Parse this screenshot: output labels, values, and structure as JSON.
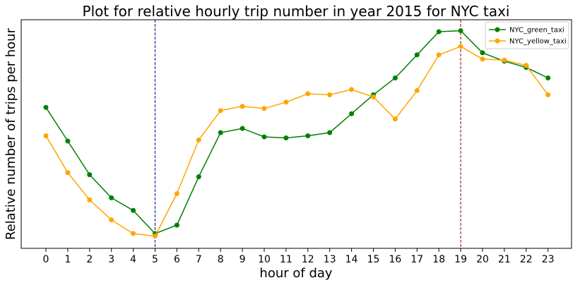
{
  "chart_data": {
    "type": "line",
    "title": "Plot for relative hourly trip number in year 2015 for NYC taxi",
    "xlabel": "hour of day",
    "ylabel": "Relative number of trips per hour",
    "x": [
      0,
      1,
      2,
      3,
      4,
      5,
      6,
      7,
      8,
      9,
      10,
      11,
      12,
      13,
      14,
      15,
      16,
      17,
      18,
      19,
      20,
      21,
      22,
      23
    ],
    "ylim": [
      0,
      1
    ],
    "y_ticks_shown": false,
    "grid": false,
    "legend_position": "top-right",
    "vlines": [
      {
        "x": 5,
        "color": "#00008b",
        "style": "dashed"
      },
      {
        "x": 19,
        "color": "#8b0000",
        "style": "dashed"
      }
    ],
    "series": [
      {
        "name": "NYC_green_taxi",
        "color": "#008000",
        "values": [
          0.63,
          0.47,
          0.31,
          0.2,
          0.14,
          0.03,
          0.07,
          0.3,
          0.51,
          0.53,
          0.49,
          0.485,
          0.495,
          0.51,
          0.6,
          0.69,
          0.77,
          0.88,
          0.99,
          0.995,
          0.89,
          0.85,
          0.82,
          0.77
        ]
      },
      {
        "name": "NYC_yellow_taxi",
        "color": "#ffa500",
        "values": [
          0.495,
          0.32,
          0.19,
          0.095,
          0.03,
          0.018,
          0.22,
          0.475,
          0.615,
          0.635,
          0.625,
          0.655,
          0.695,
          0.69,
          0.715,
          0.68,
          0.575,
          0.71,
          0.88,
          0.92,
          0.86,
          0.855,
          0.83,
          0.69
        ]
      }
    ]
  }
}
